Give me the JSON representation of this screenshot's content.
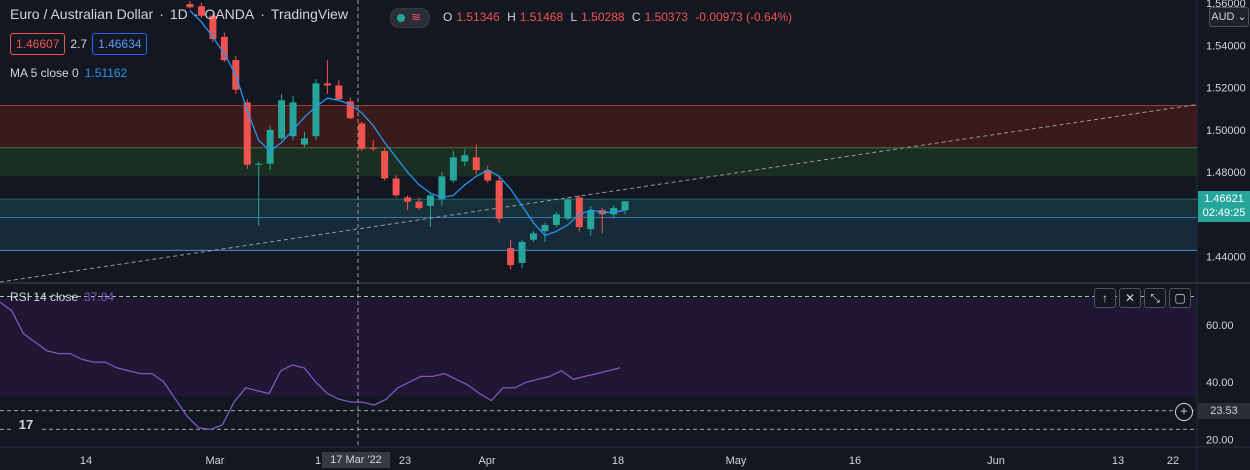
{
  "header": {
    "symbol": "Euro / Australian Dollar",
    "interval": "1D",
    "exchange": "OANDA",
    "source": "TradingView",
    "ohlc": {
      "o_label": "O",
      "o": "1.51346",
      "h_label": "H",
      "h": "1.51468",
      "l_label": "L",
      "l": "1.50288",
      "c_label": "C",
      "c": "1.50373",
      "change": "-0.00973 (-0.64%)"
    },
    "live_icon": "≋"
  },
  "quote": {
    "bid": "1.46607",
    "spread": "2.7",
    "ask": "1.46634"
  },
  "ma": {
    "label": "MA 5 close 0",
    "value": "1.51162"
  },
  "rsi": {
    "label": "RSI 14 close",
    "value": "37.84"
  },
  "currency": "AUD",
  "price_tag": {
    "price": "1.46621",
    "countdown": "02:49:25"
  },
  "rsi_tag": "23.53",
  "rsi_plus": "+",
  "crosshair_label": "17 Mar '22",
  "logo": "17",
  "controls": [
    {
      "name": "move-up-icon",
      "glyph": "↑"
    },
    {
      "name": "close-pane-icon",
      "glyph": "✕"
    },
    {
      "name": "collapse-pane-icon",
      "glyph": "⤡"
    },
    {
      "name": "maximize-pane-icon",
      "glyph": "▢"
    }
  ],
  "colors": {
    "up": "#26a69a",
    "down": "#ef5350",
    "ma": "#2196f3",
    "rsi": "#7e57c2",
    "bg": "#131722"
  },
  "chart_data": {
    "type": "candlestick",
    "price_ticks": [
      "1.56000",
      "1.54000",
      "1.52000",
      "1.50000",
      "1.48000",
      "1.44000"
    ],
    "price_ylim": [
      1.428,
      1.5605
    ],
    "x_ticks": [
      "14",
      "Mar",
      "1",
      "23",
      "Apr",
      "18",
      "May",
      "16",
      "Jun",
      "13",
      "22"
    ],
    "candles": [
      {
        "o": 1.5595,
        "h": 1.561,
        "l": 1.5575,
        "c": 1.558
      },
      {
        "o": 1.5585,
        "h": 1.56,
        "l": 1.553,
        "c": 1.554
      },
      {
        "o": 1.554,
        "h": 1.555,
        "l": 1.5415,
        "c": 1.543
      },
      {
        "o": 1.544,
        "h": 1.546,
        "l": 1.532,
        "c": 1.533
      },
      {
        "o": 1.533,
        "h": 1.535,
        "l": 1.517,
        "c": 1.519
      },
      {
        "o": 1.513,
        "h": 1.5145,
        "l": 1.4815,
        "c": 1.4835
      },
      {
        "o": 1.4835,
        "h": 1.485,
        "l": 1.4545,
        "c": 1.484
      },
      {
        "o": 1.484,
        "h": 1.502,
        "l": 1.481,
        "c": 1.5
      },
      {
        "o": 1.496,
        "h": 1.517,
        "l": 1.495,
        "c": 1.514
      },
      {
        "o": 1.497,
        "h": 1.516,
        "l": 1.495,
        "c": 1.513
      },
      {
        "o": 1.493,
        "h": 1.499,
        "l": 1.492,
        "c": 1.496
      },
      {
        "o": 1.497,
        "h": 1.524,
        "l": 1.495,
        "c": 1.522
      },
      {
        "o": 1.522,
        "h": 1.533,
        "l": 1.517,
        "c": 1.521
      },
      {
        "o": 1.521,
        "h": 1.5235,
        "l": 1.5135,
        "c": 1.5145
      },
      {
        "o": 1.5135,
        "h": 1.5155,
        "l": 1.505,
        "c": 1.5055
      },
      {
        "o": 1.503,
        "h": 1.504,
        "l": 1.49,
        "c": 1.491
      },
      {
        "o": 1.4915,
        "h": 1.495,
        "l": 1.49,
        "c": 1.491
      },
      {
        "o": 1.49,
        "h": 1.4915,
        "l": 1.476,
        "c": 1.477
      },
      {
        "o": 1.477,
        "h": 1.4785,
        "l": 1.468,
        "c": 1.469
      },
      {
        "o": 1.468,
        "h": 1.469,
        "l": 1.462,
        "c": 1.466
      },
      {
        "o": 1.466,
        "h": 1.468,
        "l": 1.462,
        "c": 1.463
      },
      {
        "o": 1.464,
        "h": 1.47,
        "l": 1.454,
        "c": 1.469
      },
      {
        "o": 1.467,
        "h": 1.48,
        "l": 1.464,
        "c": 1.478
      },
      {
        "o": 1.476,
        "h": 1.49,
        "l": 1.475,
        "c": 1.487
      },
      {
        "o": 1.485,
        "h": 1.491,
        "l": 1.483,
        "c": 1.488
      },
      {
        "o": 1.487,
        "h": 1.493,
        "l": 1.479,
        "c": 1.481
      },
      {
        "o": 1.481,
        "h": 1.483,
        "l": 1.475,
        "c": 1.476
      },
      {
        "o": 1.476,
        "h": 1.478,
        "l": 1.456,
        "c": 1.458
      },
      {
        "o": 1.444,
        "h": 1.448,
        "l": 1.434,
        "c": 1.436
      },
      {
        "o": 1.437,
        "h": 1.448,
        "l": 1.4345,
        "c": 1.447
      },
      {
        "o": 1.448,
        "h": 1.452,
        "l": 1.447,
        "c": 1.451
      },
      {
        "o": 1.452,
        "h": 1.456,
        "l": 1.447,
        "c": 1.455
      },
      {
        "o": 1.455,
        "h": 1.461,
        "l": 1.454,
        "c": 1.46
      },
      {
        "o": 1.458,
        "h": 1.468,
        "l": 1.457,
        "c": 1.467
      },
      {
        "o": 1.468,
        "h": 1.469,
        "l": 1.452,
        "c": 1.454
      },
      {
        "o": 1.453,
        "h": 1.464,
        "l": 1.45,
        "c": 1.462
      },
      {
        "o": 1.462,
        "h": 1.463,
        "l": 1.451,
        "c": 1.46
      },
      {
        "o": 1.46,
        "h": 1.4645,
        "l": 1.458,
        "c": 1.463
      },
      {
        "o": 1.462,
        "h": 1.466,
        "l": 1.46,
        "c": 1.4662
      }
    ],
    "ma_line": [
      1.5565,
      1.551,
      1.544,
      1.536,
      1.526,
      1.509,
      1.495,
      1.49,
      1.494,
      1.5,
      1.506,
      1.511,
      1.515,
      1.514,
      1.512,
      1.508,
      1.502,
      1.494,
      1.487,
      1.48,
      1.474,
      1.47,
      1.468,
      1.469,
      1.474,
      1.478,
      1.481,
      1.478,
      1.472,
      1.464,
      1.456,
      1.45,
      1.452,
      1.455,
      1.46,
      1.462,
      1.461,
      1.461,
      1.462
    ],
    "zones": [
      {
        "top": 1.5115,
        "bottom": 1.4915,
        "kind": "resistance"
      },
      {
        "top": 1.4915,
        "bottom": 1.478,
        "kind": "green"
      },
      {
        "top": 1.4672,
        "bottom": 1.4585,
        "kind": "support-upper"
      },
      {
        "top": 1.4585,
        "bottom": 1.443,
        "kind": "support"
      }
    ],
    "rsi_series": [
      68,
      65,
      57,
      54,
      51,
      50,
      50,
      48,
      47,
      47,
      45,
      44,
      43,
      43,
      40,
      34,
      28,
      24,
      23.5,
      25,
      33,
      38,
      37,
      36,
      44,
      46,
      45,
      40,
      36,
      34,
      33,
      33,
      32,
      34,
      38,
      40,
      42,
      42,
      43,
      41,
      39,
      36,
      33.5,
      38,
      38,
      40,
      41,
      42,
      44,
      41,
      42,
      43,
      44,
      45
    ],
    "rsi_ticks": [
      "60.00",
      "40.00",
      "20.00"
    ],
    "rsi_ylim": [
      18,
      74
    ]
  }
}
